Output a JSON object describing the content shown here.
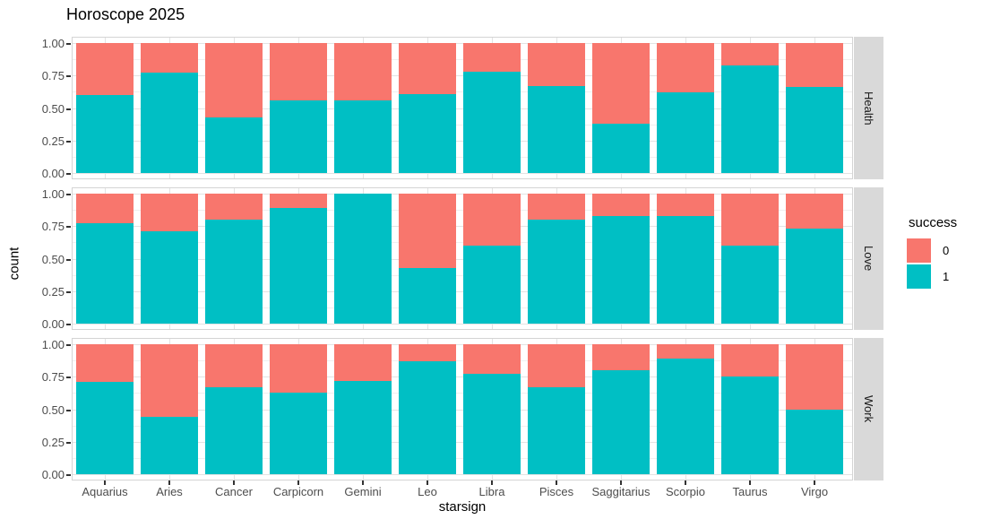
{
  "title": "Horoscope 2025",
  "legend": {
    "title": "success",
    "entries": [
      {
        "label": "0",
        "color": "#F8766D"
      },
      {
        "label": "1",
        "color": "#00BFC4"
      }
    ]
  },
  "colors": {
    "success_0": "#F8766D",
    "success_1": "#00BFC4",
    "strip_background": "#D9D9D9",
    "grid_major": "#E3E3E3",
    "grid_minor": "#EFEFEF",
    "panel_border": "#D4D4D4",
    "axis_text": "#4D4D4D",
    "title_text": "#000000"
  },
  "chart_data": {
    "type": "bar",
    "stacked": true,
    "normalized_to_1": true,
    "title": "Horoscope 2025",
    "xlabel": "starsign",
    "ylabel": "count",
    "ylim": [
      0,
      1
    ],
    "y_tick_labels": [
      "1.00",
      "0.75",
      "0.50",
      "0.25",
      "0.00"
    ],
    "grid": "major+minor",
    "legend_position": "right",
    "facet_strip_position": "right",
    "categories": [
      "Aquarius",
      "Aries",
      "Cancer",
      "Carpicorn",
      "Gemini",
      "Leo",
      "Libra",
      "Pisces",
      "Saggitarius",
      "Scorpio",
      "Taurus",
      "Virgo"
    ],
    "facets": [
      {
        "label": "Health",
        "series": [
          {
            "name": "1",
            "values": [
              0.6,
              0.77,
              0.43,
              0.56,
              0.56,
              0.61,
              0.78,
              0.67,
              0.38,
              0.62,
              0.83,
              0.66
            ]
          },
          {
            "name": "0",
            "values": [
              0.4,
              0.23,
              0.57,
              0.44,
              0.44,
              0.39,
              0.22,
              0.33,
              0.62,
              0.38,
              0.17,
              0.34
            ]
          }
        ]
      },
      {
        "label": "Love",
        "series": [
          {
            "name": "1",
            "values": [
              0.77,
              0.71,
              0.8,
              0.89,
              1.0,
              0.43,
              0.6,
              0.8,
              0.83,
              0.83,
              0.6,
              0.73
            ]
          },
          {
            "name": "0",
            "values": [
              0.23,
              0.29,
              0.2,
              0.11,
              0.0,
              0.57,
              0.4,
              0.2,
              0.17,
              0.17,
              0.4,
              0.27
            ]
          }
        ]
      },
      {
        "label": "Work",
        "series": [
          {
            "name": "1",
            "values": [
              0.71,
              0.44,
              0.67,
              0.63,
              0.72,
              0.87,
              0.77,
              0.67,
              0.8,
              0.89,
              0.75,
              0.5
            ]
          },
          {
            "name": "0",
            "values": [
              0.29,
              0.56,
              0.33,
              0.37,
              0.28,
              0.13,
              0.23,
              0.33,
              0.2,
              0.11,
              0.25,
              0.5
            ]
          }
        ]
      }
    ]
  }
}
